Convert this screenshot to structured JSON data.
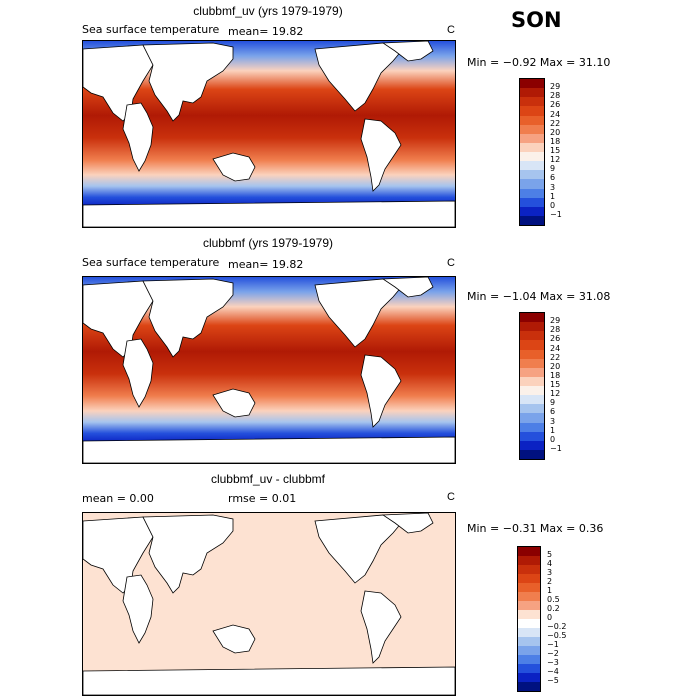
{
  "season": "SON",
  "panels": [
    {
      "title": "clubbmf_uv (yrs 1979-1979)",
      "subtitle": "Sea surface temperature",
      "stat": "mean=   19.82",
      "unit": "C",
      "minmax": "Min =  −0.92 Max =   31.10",
      "levels": [
        "29",
        "28",
        "26",
        "24",
        "22",
        "20",
        "18",
        "15",
        "12",
        "9",
        "6",
        "3",
        "1",
        "0",
        "−1"
      ],
      "colors": [
        "#8b0000",
        "#b01a05",
        "#c9300c",
        "#dc4515",
        "#e8602a",
        "#f07e4e",
        "#f6a282",
        "#fbd2bd",
        "#fbf1ea",
        "#d8e5f6",
        "#a6c4ee",
        "#7aa3ea",
        "#4d7fe6",
        "#2450dc",
        "#0b22c3",
        "#001180"
      ]
    },
    {
      "title": "clubbmf (yrs 1979-1979)",
      "subtitle": "Sea surface temperature",
      "stat": "mean=   19.82",
      "unit": "C",
      "minmax": "Min =  −1.04 Max =   31.08",
      "levels": [
        "29",
        "28",
        "26",
        "24",
        "22",
        "20",
        "18",
        "15",
        "12",
        "9",
        "6",
        "3",
        "1",
        "0",
        "−1"
      ],
      "colors": [
        "#8b0000",
        "#b01a05",
        "#c9300c",
        "#dc4515",
        "#e8602a",
        "#f07e4e",
        "#f6a282",
        "#fbd2bd",
        "#fbf1ea",
        "#d8e5f6",
        "#a6c4ee",
        "#7aa3ea",
        "#4d7fe6",
        "#2450dc",
        "#0b22c3",
        "#001180"
      ]
    },
    {
      "title": "clubbmf_uv - clubbmf",
      "stat_mean": "mean =     0.00",
      "stat_rmse": "rmse =    0.01",
      "unit": "C",
      "minmax": "Min =  −0.31 Max =    0.36",
      "levels": [
        "5",
        "4",
        "3",
        "2",
        "1",
        "0.5",
        "0.2",
        "0",
        "−0.2",
        "−0.5",
        "−1",
        "−2",
        "−3",
        "−4",
        "−5"
      ],
      "colors": [
        "#8b0000",
        "#b01a05",
        "#c9300c",
        "#dc4515",
        "#e8602a",
        "#f07e4e",
        "#f6a282",
        "#fde2d2",
        "#ffffff",
        "#d8e5f6",
        "#a6c4ee",
        "#7aa3ea",
        "#4d7fe6",
        "#2450dc",
        "#0b22c3",
        "#001180"
      ]
    }
  ]
}
